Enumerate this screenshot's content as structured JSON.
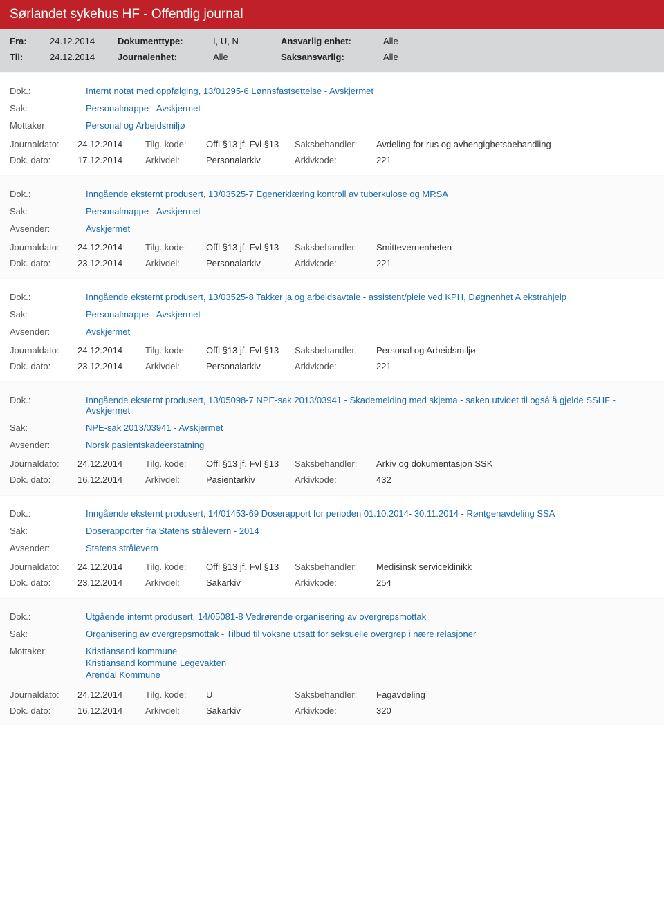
{
  "header": {
    "title": "Sørlandet sykehus HF - Offentlig journal"
  },
  "filter": {
    "fra_label": "Fra:",
    "fra_value": "24.12.2014",
    "til_label": "Til:",
    "til_value": "24.12.2014",
    "doktype_label": "Dokumenttype:",
    "doktype_value": "I, U, N",
    "journalenhet_label": "Journalenhet:",
    "journalenhet_value": "Alle",
    "ansvarlig_label": "Ansvarlig enhet:",
    "ansvarlig_value": "Alle",
    "saksansvarlig_label": "Saksansvarlig:",
    "saksansvarlig_value": "Alle"
  },
  "labels": {
    "dok": "Dok.:",
    "sak": "Sak:",
    "mottaker": "Mottaker:",
    "avsender": "Avsender:",
    "journaldato": "Journaldato:",
    "tilgkode": "Tilg. kode:",
    "saksbehandler": "Saksbehandler:",
    "dokdato": "Dok. dato:",
    "arkivdel": "Arkivdel:",
    "arkivkode": "Arkivkode:"
  },
  "entries": [
    {
      "dok": "Internt notat med oppfølging, 13/01295-6 Lønnsfastsettelse - Avskjermet",
      "sak": "Personalmappe - Avskjermet",
      "party_label": "Mottaker:",
      "party_value": "Personal og Arbeidsmiljø",
      "journaldato": "24.12.2014",
      "tilgkode": "Offl §13 jf. Fvl §13",
      "saksbehandler": "Avdeling for rus og avhengighetsbehandling",
      "dokdato": "17.12.2014",
      "arkivdel": "Personalarkiv",
      "arkivkode": "221"
    },
    {
      "dok": "Inngående eksternt produsert, 13/03525-7 Egenerklæring kontroll av tuberkulose og MRSA",
      "sak": "Personalmappe - Avskjermet",
      "party_label": "Avsender:",
      "party_value": "Avskjermet",
      "journaldato": "24.12.2014",
      "tilgkode": "Offl §13 jf. Fvl §13",
      "saksbehandler": "Smittevernenheten",
      "dokdato": "23.12.2014",
      "arkivdel": "Personalarkiv",
      "arkivkode": "221"
    },
    {
      "dok": "Inngående eksternt produsert, 13/03525-8 Takker ja og arbeidsavtale - assistent/pleie ved KPH, Døgnenhet A ekstrahjelp",
      "sak": "Personalmappe - Avskjermet",
      "party_label": "Avsender:",
      "party_value": "Avskjermet",
      "journaldato": "24.12.2014",
      "tilgkode": "Offl §13 jf. Fvl §13",
      "saksbehandler": "Personal og Arbeidsmiljø",
      "dokdato": "23.12.2014",
      "arkivdel": "Personalarkiv",
      "arkivkode": "221"
    },
    {
      "dok": "Inngående eksternt produsert, 13/05098-7 NPE-sak 2013/03941 - Skademelding med skjema - saken utvidet til også å gjelde SSHF - Avskjermet",
      "sak": "NPE-sak 2013/03941 - Avskjermet",
      "party_label": "Avsender:",
      "party_value": "Norsk pasientskadeerstatning",
      "journaldato": "24.12.2014",
      "tilgkode": "Offl §13 jf. Fvl §13",
      "saksbehandler": "Arkiv og dokumentasjon SSK",
      "dokdato": "16.12.2014",
      "arkivdel": "Pasientarkiv",
      "arkivkode": "432"
    },
    {
      "dok": "Inngående eksternt produsert, 14/01453-69 Doserapport for perioden 01.10.2014- 30.11.2014 - Røntgenavdeling SSA",
      "sak": "Doserapporter fra Statens strålevern - 2014",
      "party_label": "Avsender:",
      "party_value": "Statens strålevern",
      "journaldato": "24.12.2014",
      "tilgkode": "Offl §13 jf. Fvl §13",
      "saksbehandler": "Medisinsk serviceklinikk",
      "dokdato": "23.12.2014",
      "arkivdel": "Sakarkiv",
      "arkivkode": "254"
    },
    {
      "dok": "Utgående internt produsert, 14/05081-8 Vedrørende organisering av overgrepsmottak",
      "sak": "Organisering av overgrepsmottak - Tilbud til voksne utsatt for seksuelle overgrep i nære relasjoner",
      "party_label": "Mottaker:",
      "party_lines": [
        "Kristiansand kommune",
        "Kristiansand kommune Legevakten",
        "Arendal Kommune"
      ],
      "journaldato": "24.12.2014",
      "tilgkode": "U",
      "saksbehandler": "Fagavdeling",
      "dokdato": "16.12.2014",
      "arkivdel": "Sakarkiv",
      "arkivkode": "320"
    }
  ]
}
